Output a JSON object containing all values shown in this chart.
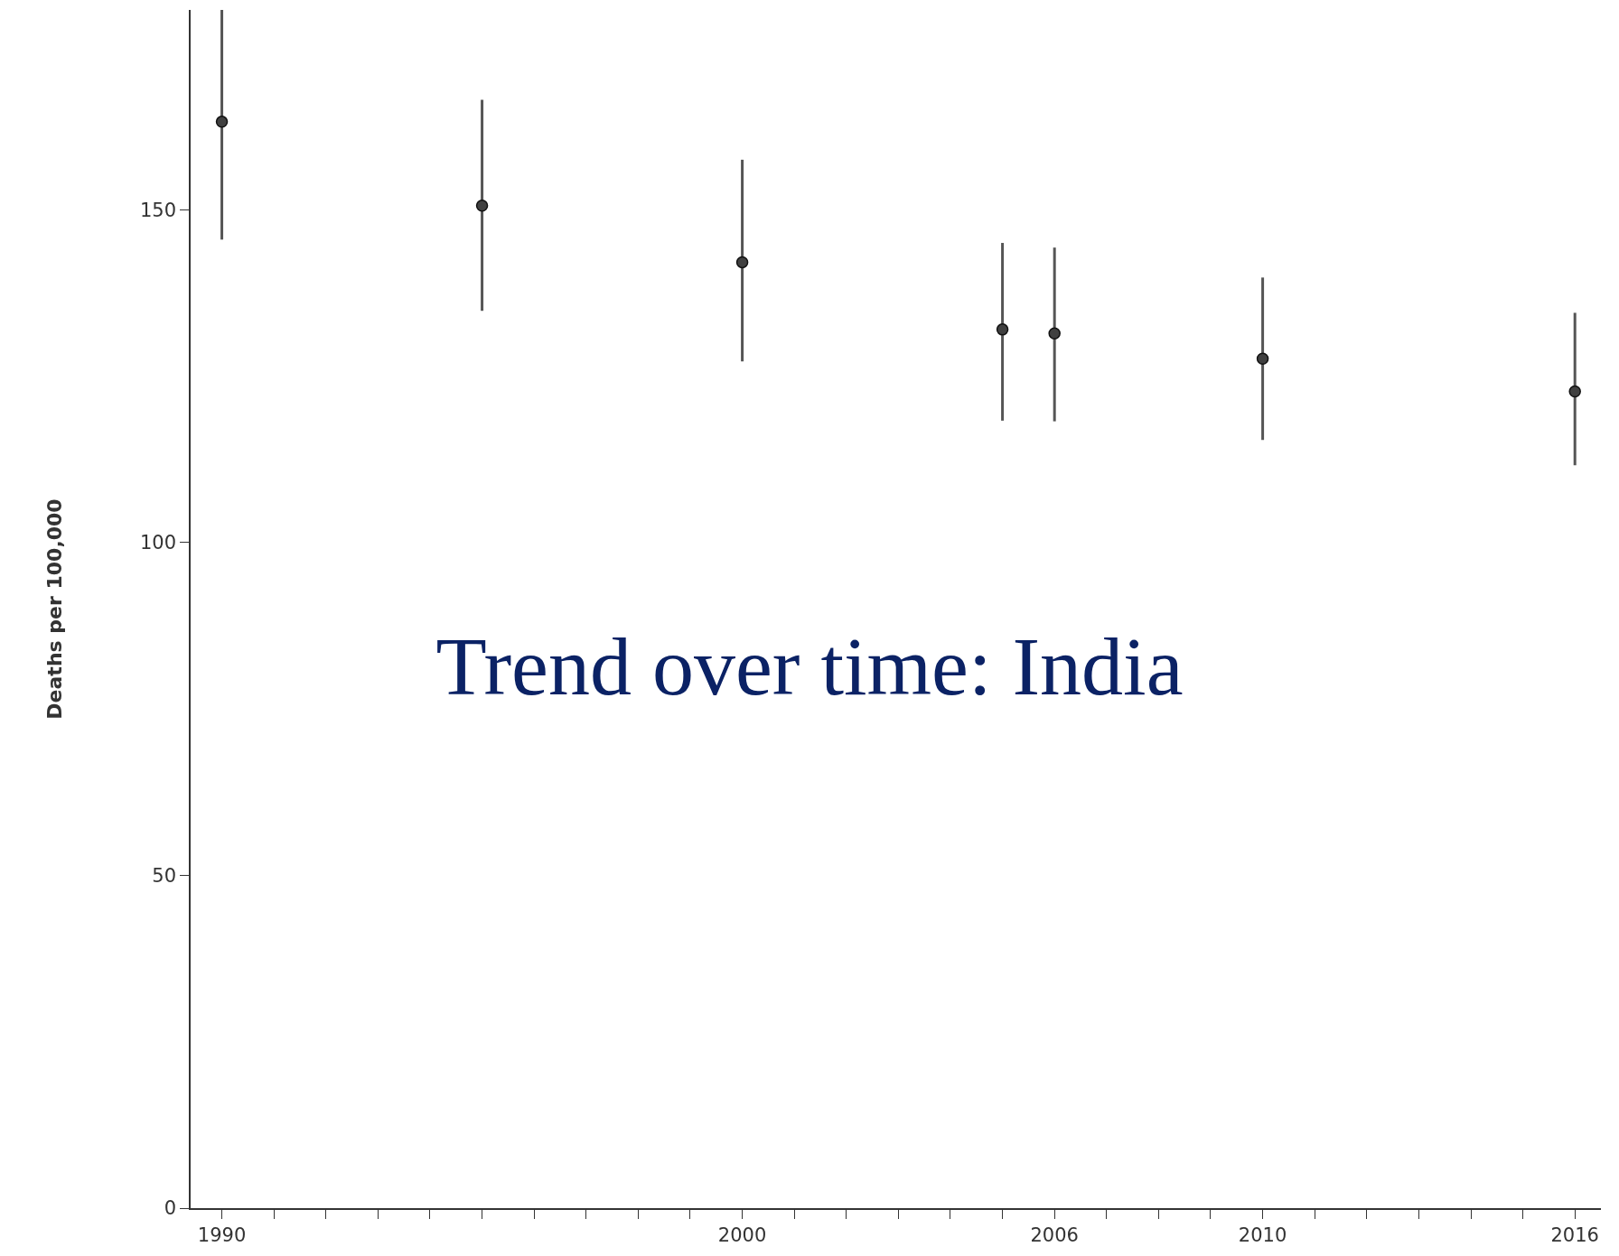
{
  "chart_data": {
    "type": "scatter",
    "title": "Trend over time: India",
    "ylabel": "Deaths per 100,000",
    "x": [
      1990,
      1995,
      2000,
      2005,
      2006,
      2010,
      2016
    ],
    "values": [
      163.2,
      150.6,
      142.1,
      132.0,
      131.4,
      127.6,
      122.7
    ],
    "errors": [
      [
        145.5,
        180
      ],
      [
        134.8,
        166.5
      ],
      [
        127.2,
        157.5
      ],
      [
        118.3,
        145.0
      ],
      [
        118.2,
        144.3
      ],
      [
        115.4,
        139.8
      ],
      [
        111.6,
        134.5
      ]
    ],
    "color": "#404040",
    "marker": "circle",
    "legend": false,
    "xlim": [
      1989.4,
      2016.5
    ],
    "xticks": [
      1990,
      {
        "value": 1991,
        "label": null
      },
      {
        "value": 1992,
        "label": null
      },
      {
        "value": 1993,
        "label": null
      },
      {
        "value": 1994,
        "label": null
      },
      {
        "value": 1995,
        "label": null
      },
      {
        "value": 1996,
        "label": null
      },
      {
        "value": 1997,
        "label": null
      },
      {
        "value": 1998,
        "label": null
      },
      {
        "value": 1999,
        "label": null
      },
      2000,
      {
        "value": 2001,
        "label": null
      },
      {
        "value": 2002,
        "label": null
      },
      {
        "value": 2003,
        "label": null
      },
      {
        "value": 2004,
        "label": null
      },
      {
        "value": 2005,
        "label": null
      },
      2006,
      {
        "value": 2007,
        "label": null
      },
      {
        "value": 2008,
        "label": null
      },
      {
        "value": 2009,
        "label": null
      },
      2010,
      {
        "value": 2011,
        "label": null
      },
      {
        "value": 2012,
        "label": null
      },
      {
        "value": 2013,
        "label": null
      },
      {
        "value": 2014,
        "label": null
      },
      {
        "value": 2015,
        "label": null
      },
      2016
    ],
    "ylim": [
      0,
      180
    ],
    "yticks": [
      0,
      50,
      100,
      150
    ]
  }
}
